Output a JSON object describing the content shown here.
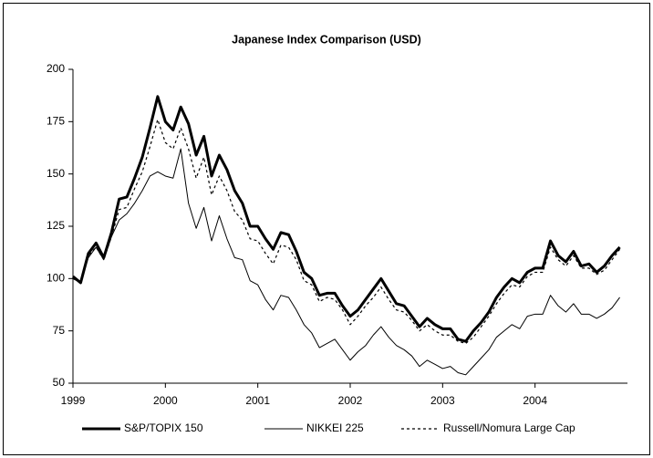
{
  "chart_data": {
    "type": "line",
    "title": "Japanese Index Comparison (USD)",
    "categories": [
      "1999",
      null,
      null,
      null,
      null,
      null,
      null,
      null,
      null,
      null,
      null,
      null,
      "2000",
      null,
      null,
      null,
      null,
      null,
      null,
      null,
      null,
      null,
      null,
      null,
      "2001",
      null,
      null,
      null,
      null,
      null,
      null,
      null,
      null,
      null,
      null,
      null,
      "2002",
      null,
      null,
      null,
      null,
      null,
      null,
      null,
      null,
      null,
      null,
      null,
      "2003",
      null,
      null,
      null,
      null,
      null,
      null,
      null,
      null,
      null,
      null,
      null,
      "2004",
      null,
      null,
      null,
      null,
      null,
      null,
      null,
      null,
      null,
      null,
      null
    ],
    "series": [
      {
        "name": "S&P/TOPIX 150",
        "color": "#000000",
        "line_width": 3,
        "dashed": false,
        "values": [
          101,
          98,
          112,
          117,
          110,
          122,
          138,
          139,
          148,
          158,
          172,
          187,
          175,
          171,
          182,
          174,
          159,
          168,
          149,
          159,
          152,
          142,
          136,
          125,
          125,
          119,
          114,
          122,
          121,
          113,
          103,
          100,
          92,
          93,
          93,
          87,
          82,
          85,
          90,
          95,
          100,
          94,
          88,
          87,
          82,
          77,
          81,
          78,
          76,
          76,
          71,
          70,
          75,
          79,
          84,
          91,
          96,
          100,
          98,
          103,
          105,
          105,
          118,
          111,
          108,
          113,
          106,
          107,
          103,
          106,
          111,
          115
        ]
      },
      {
        "name": "NIKKEI 225",
        "color": "#000000",
        "line_width": 1,
        "dashed": false,
        "values": [
          100,
          98,
          110,
          115,
          109,
          120,
          128,
          131,
          136,
          142,
          149,
          151,
          149,
          148,
          162,
          136,
          124,
          134,
          118,
          130,
          119,
          110,
          109,
          99,
          97,
          90,
          85,
          92,
          91,
          85,
          78,
          74,
          67,
          69,
          71,
          66,
          61,
          65,
          68,
          73,
          77,
          72,
          68,
          66,
          63,
          58,
          61,
          59,
          57,
          58,
          55,
          54,
          58,
          62,
          66,
          72,
          75,
          78,
          76,
          82,
          83,
          83,
          92,
          87,
          84,
          88,
          83,
          83,
          81,
          83,
          86,
          91
        ]
      },
      {
        "name": "Russell/Nomura Large Cap",
        "color": "#000000",
        "line_width": 1.2,
        "dashed": true,
        "values": [
          100,
          98,
          111,
          115,
          109,
          120,
          133,
          134,
          143,
          151,
          163,
          176,
          165,
          162,
          172,
          162,
          148,
          158,
          140,
          149,
          142,
          132,
          128,
          119,
          118,
          112,
          107,
          116,
          115,
          109,
          99,
          97,
          89,
          91,
          90,
          85,
          78,
          82,
          87,
          91,
          96,
          90,
          85,
          84,
          80,
          75,
          78,
          75,
          73,
          73,
          70,
          69,
          72,
          77,
          82,
          88,
          93,
          97,
          96,
          101,
          103,
          103,
          115,
          109,
          106,
          111,
          105,
          105,
          102,
          104,
          109,
          114
        ]
      }
    ],
    "ylim": [
      50,
      200
    ],
    "yticks": [
      50,
      75,
      100,
      125,
      150,
      175,
      200
    ],
    "grid": false,
    "legend": "bottom"
  }
}
